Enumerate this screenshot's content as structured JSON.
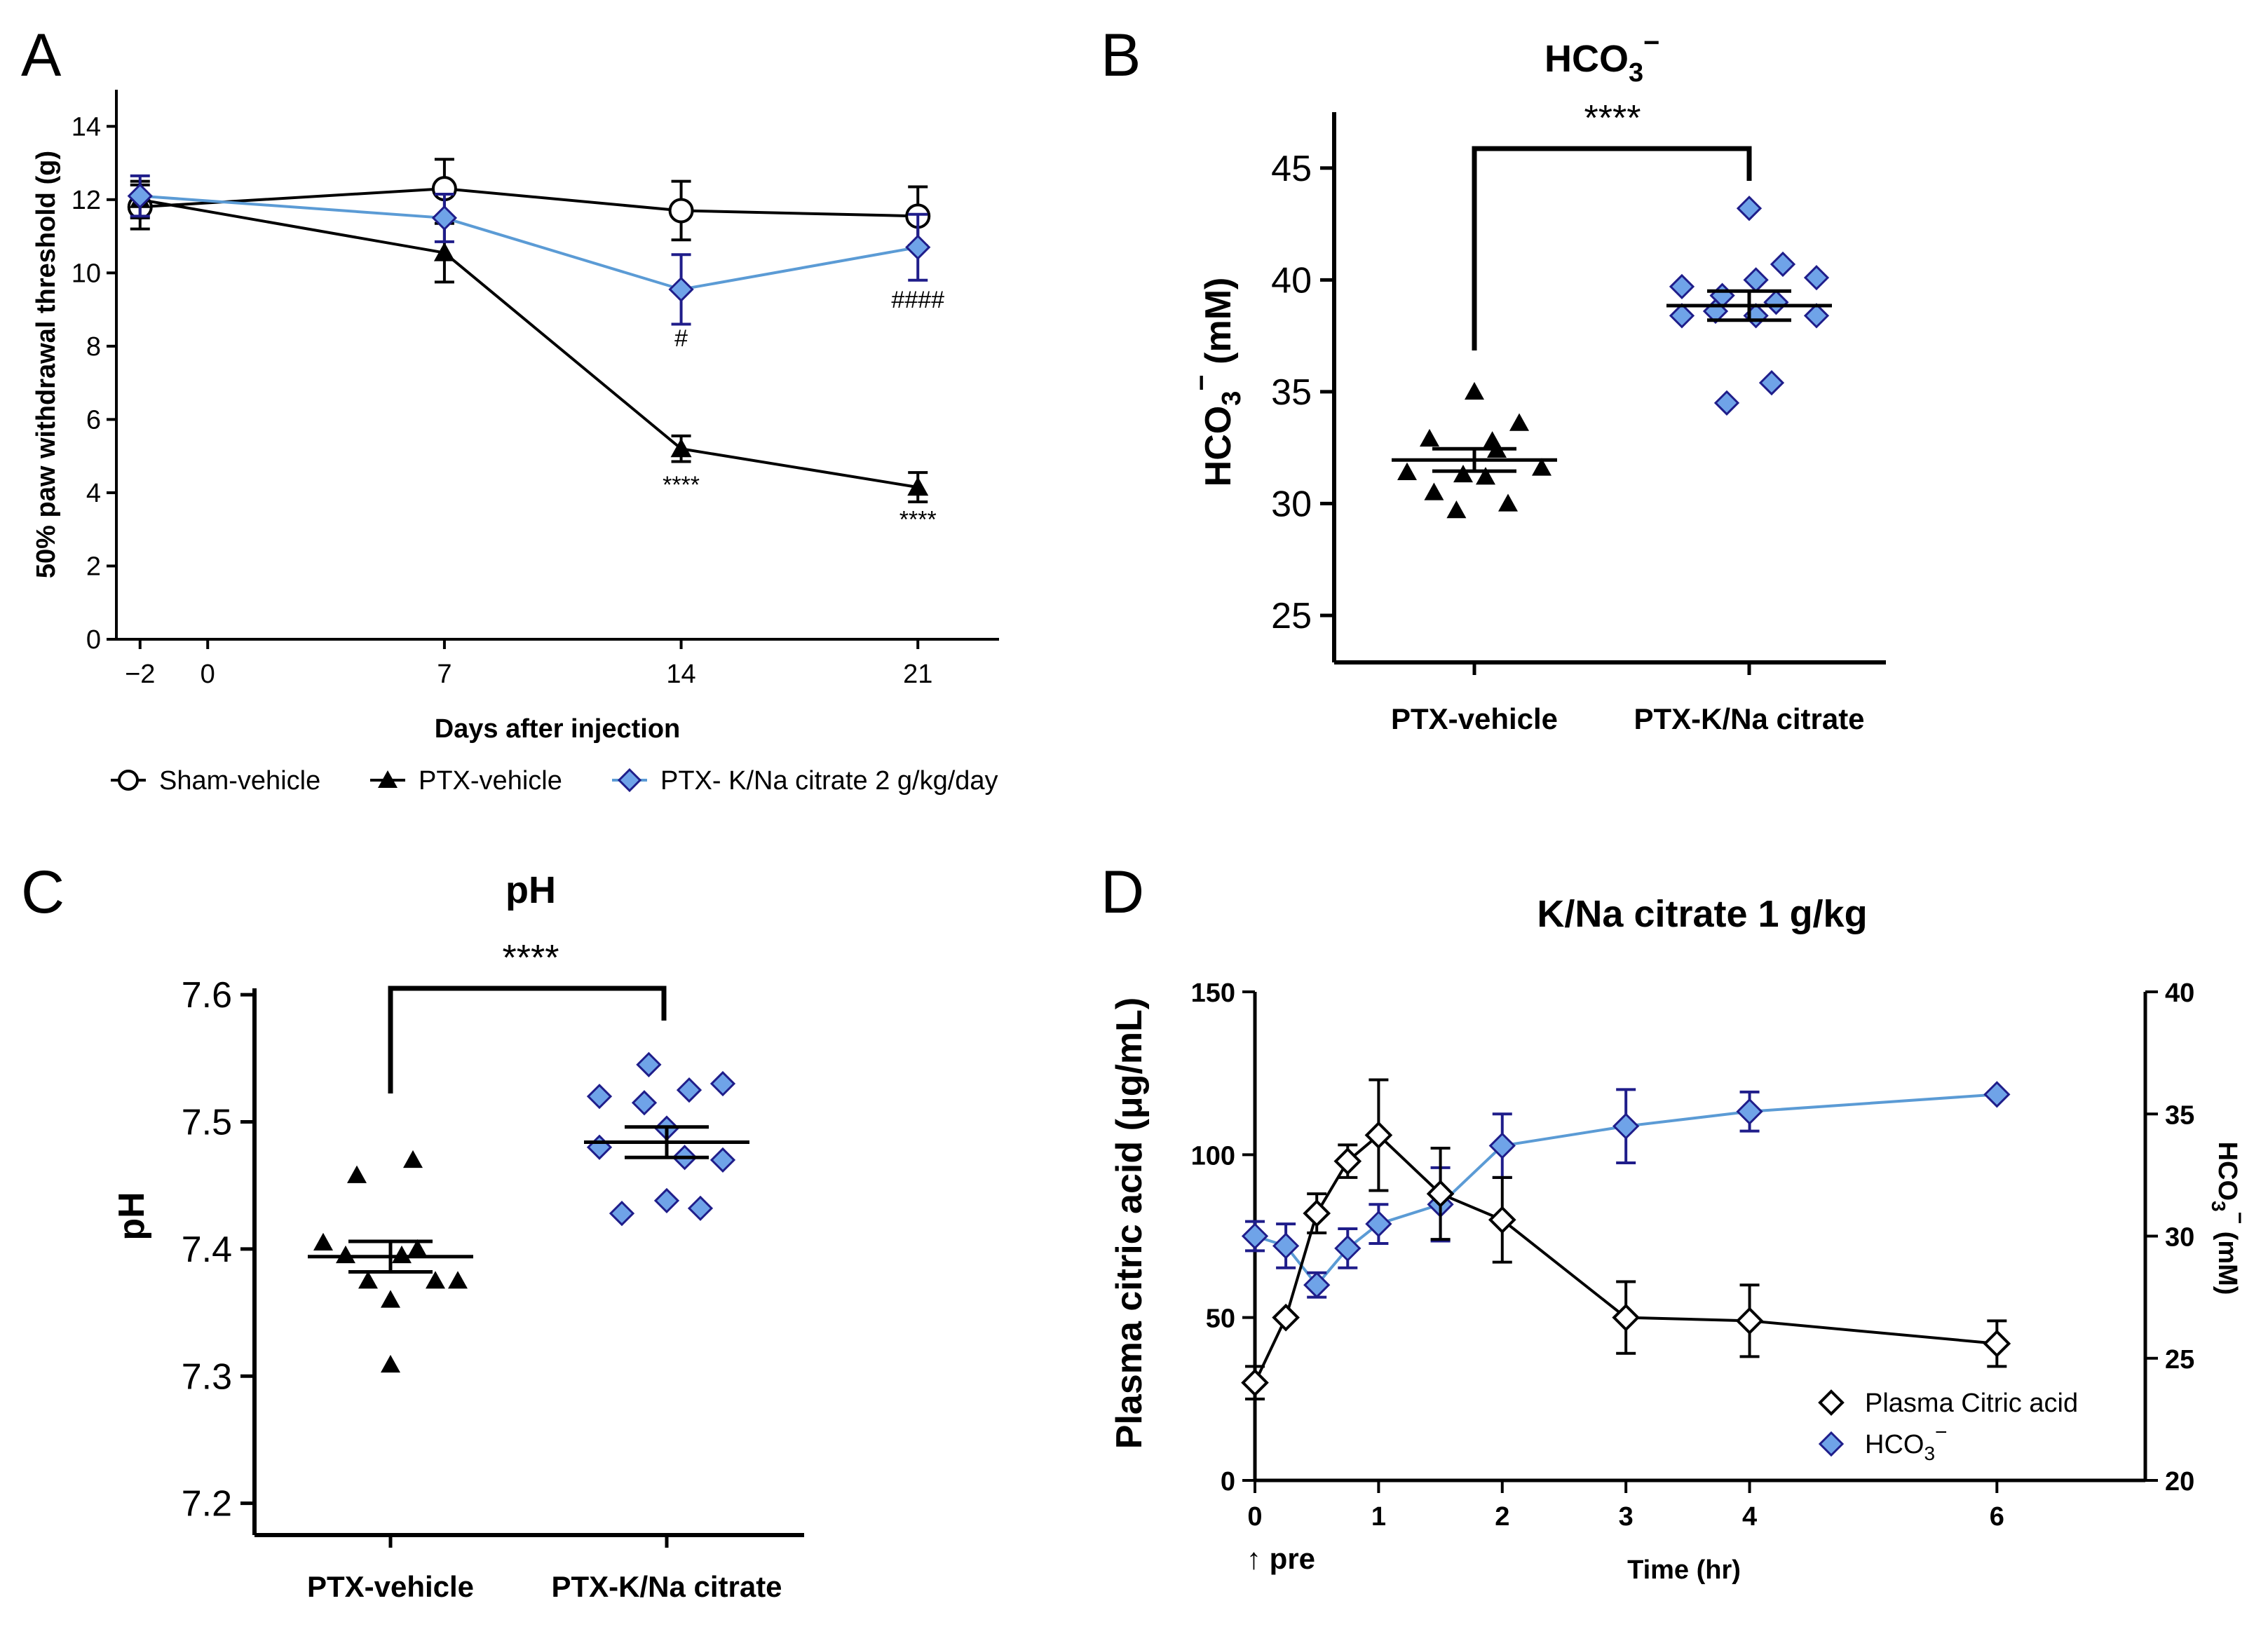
{
  "colors": {
    "black": "#000000",
    "blue_line": "#5b9bd5",
    "blue_dark": "#1f1d8a",
    "blue_fill": "#6fa3e8"
  },
  "chart_data": [
    {
      "panel": "A",
      "type": "line",
      "title": "",
      "xlabel": "Days after injection",
      "ylabel": "50% paw withdrawal threshold (g)",
      "xlim": [
        -2.7,
        23.4
      ],
      "ylim": [
        0,
        15
      ],
      "xticks": [
        {
          "v": -2,
          "label": "−2"
        },
        {
          "v": 0,
          "label": "0"
        },
        {
          "v": 7,
          "label": "7"
        },
        {
          "v": 14,
          "label": "14"
        },
        {
          "v": 21,
          "label": "21"
        }
      ],
      "yticks": [
        {
          "v": 0,
          "label": "0"
        },
        {
          "v": 2,
          "label": "2"
        },
        {
          "v": 4,
          "label": "4"
        },
        {
          "v": 6,
          "label": "6"
        },
        {
          "v": 8,
          "label": "8"
        },
        {
          "v": 10,
          "label": "10"
        },
        {
          "v": 12,
          "label": "12"
        },
        {
          "v": 14,
          "label": "14"
        }
      ],
      "series": [
        {
          "name": "Sham-vehicle",
          "marker": "circle",
          "x": [
            -2,
            7,
            14,
            21
          ],
          "y": [
            11.8,
            12.3,
            11.7,
            11.55
          ],
          "err": [
            0.6,
            0.8,
            0.8,
            0.8
          ]
        },
        {
          "name": "PTX-vehicle",
          "marker": "triangle",
          "x": [
            -2,
            7,
            14,
            21
          ],
          "y": [
            12.0,
            10.55,
            5.2,
            4.15
          ],
          "err": [
            0.5,
            0.8,
            0.35,
            0.4
          ]
        },
        {
          "name": "PTX- K/Na citrate 2 g/kg/day",
          "marker": "diamond",
          "x": [
            -2,
            7,
            14,
            21
          ],
          "y": [
            12.1,
            11.5,
            9.55,
            10.7
          ],
          "err": [
            0.55,
            0.65,
            0.95,
            0.9
          ]
        }
      ],
      "annotations": [
        {
          "text": "****",
          "x": 14,
          "y": 4.0
        },
        {
          "text": "****",
          "x": 21,
          "y": 3.05
        },
        {
          "text": "#",
          "x": 14,
          "y": 8.0
        },
        {
          "text": "####",
          "x": 21,
          "y": 9.05
        }
      ]
    },
    {
      "panel": "B",
      "type": "scatter",
      "title": "HCO3−",
      "ylabel": "HCO3− (mM)",
      "ylim": [
        22.9,
        47.5
      ],
      "yticks": [
        {
          "v": 25,
          "label": "25"
        },
        {
          "v": 30,
          "label": "30"
        },
        {
          "v": 35,
          "label": "35"
        },
        {
          "v": 40,
          "label": "40"
        },
        {
          "v": 45,
          "label": "45"
        }
      ],
      "categories": [
        "PTX-vehicle",
        "PTX-K/Na citrate"
      ],
      "groups": [
        {
          "name": "PTX-vehicle",
          "marker": "triangle",
          "mean": 31.95,
          "sem": 0.5,
          "points": [
            {
              "dx": -0.3,
              "y": 31.4
            },
            {
              "dx": -0.2,
              "y": 32.9
            },
            {
              "dx": -0.08,
              "y": 29.7
            },
            {
              "dx": 0.0,
              "y": 35.0
            },
            {
              "dx": 0.1,
              "y": 32.4
            },
            {
              "dx": 0.2,
              "y": 33.6
            },
            {
              "dx": -0.05,
              "y": 31.3
            },
            {
              "dx": 0.05,
              "y": 31.2
            },
            {
              "dx": 0.15,
              "y": 30.0
            },
            {
              "dx": 0.3,
              "y": 31.6
            },
            {
              "dx": -0.18,
              "y": 30.5
            },
            {
              "dx": 0.08,
              "y": 32.8
            }
          ]
        },
        {
          "name": "PTX-K/Na citrate",
          "marker": "diamond",
          "mean": 38.85,
          "sem": 0.65,
          "points": [
            {
              "dx": -0.3,
              "y": 38.4
            },
            {
              "dx": -0.3,
              "y": 39.7
            },
            {
              "dx": -0.12,
              "y": 39.3
            },
            {
              "dx": 0.0,
              "y": 43.2
            },
            {
              "dx": -0.1,
              "y": 34.5
            },
            {
              "dx": 0.03,
              "y": 38.4
            },
            {
              "dx": 0.03,
              "y": 40.0
            },
            {
              "dx": 0.1,
              "y": 35.4
            },
            {
              "dx": 0.12,
              "y": 39.0
            },
            {
              "dx": 0.15,
              "y": 40.7
            },
            {
              "dx": 0.3,
              "y": 38.4
            },
            {
              "dx": 0.3,
              "y": 40.1
            },
            {
              "dx": -0.15,
              "y": 38.6
            }
          ]
        }
      ],
      "significance": "****"
    },
    {
      "panel": "C",
      "type": "scatter",
      "title": "pH",
      "ylabel": "pH",
      "ylim": [
        7.175,
        7.605
      ],
      "yticks": [
        {
          "v": 7.2,
          "label": "7.2"
        },
        {
          "v": 7.3,
          "label": "7.3"
        },
        {
          "v": 7.4,
          "label": "7.4"
        },
        {
          "v": 7.5,
          "label": "7.5"
        },
        {
          "v": 7.6,
          "label": "7.6"
        }
      ],
      "categories": [
        "PTX-vehicle",
        "PTX-K/Na citrate"
      ],
      "groups": [
        {
          "name": "PTX-vehicle",
          "marker": "triangle",
          "mean": 7.394,
          "sem": 0.012,
          "points": [
            {
              "dx": -0.3,
              "y": 7.405
            },
            {
              "dx": -0.2,
              "y": 7.395
            },
            {
              "dx": -0.15,
              "y": 7.458
            },
            {
              "dx": -0.1,
              "y": 7.375
            },
            {
              "dx": 0.0,
              "y": 7.309
            },
            {
              "dx": 0.0,
              "y": 7.36
            },
            {
              "dx": 0.05,
              "y": 7.395
            },
            {
              "dx": 0.1,
              "y": 7.47
            },
            {
              "dx": 0.2,
              "y": 7.375
            },
            {
              "dx": 0.3,
              "y": 7.375
            },
            {
              "dx": 0.12,
              "y": 7.4
            }
          ]
        },
        {
          "name": "PTX-K/Na citrate",
          "marker": "diamond",
          "mean": 7.484,
          "sem": 0.012,
          "points": [
            {
              "dx": -0.3,
              "y": 7.52
            },
            {
              "dx": -0.3,
              "y": 7.48
            },
            {
              "dx": -0.2,
              "y": 7.428
            },
            {
              "dx": -0.1,
              "y": 7.515
            },
            {
              "dx": -0.08,
              "y": 7.545
            },
            {
              "dx": 0.0,
              "y": 7.438
            },
            {
              "dx": 0.0,
              "y": 7.495
            },
            {
              "dx": 0.08,
              "y": 7.472
            },
            {
              "dx": 0.1,
              "y": 7.525
            },
            {
              "dx": 0.15,
              "y": 7.432
            },
            {
              "dx": 0.25,
              "y": 7.47
            },
            {
              "dx": 0.25,
              "y": 7.53
            }
          ]
        }
      ],
      "significance": "****"
    },
    {
      "panel": "D",
      "type": "line",
      "title": "K/Na citrate 1 g/kg",
      "xlabel": "Time (hr)",
      "ylabel": "Plasma citric acid (μg/mL)",
      "y2label": "HCO3− (mM)",
      "xlim": [
        0,
        7.2
      ],
      "ylim": [
        0,
        150
      ],
      "y2lim": [
        20,
        40
      ],
      "xticks": [
        {
          "v": 0,
          "label": "0"
        },
        {
          "v": 1,
          "label": "1"
        },
        {
          "v": 2,
          "label": "2"
        },
        {
          "v": 3,
          "label": "3"
        },
        {
          "v": 4,
          "label": "4"
        },
        {
          "v": 6,
          "label": "6"
        }
      ],
      "yticks": [
        {
          "v": 0,
          "label": "0"
        },
        {
          "v": 50,
          "label": "50"
        },
        {
          "v": 100,
          "label": "100"
        },
        {
          "v": 150,
          "label": "150"
        }
      ],
      "y2ticks": [
        {
          "v": 20,
          "label": "20"
        },
        {
          "v": 25,
          "label": "25"
        },
        {
          "v": 30,
          "label": "30"
        },
        {
          "v": 35,
          "label": "35"
        },
        {
          "v": 40,
          "label": "40"
        }
      ],
      "series": [
        {
          "name": "Plasma Citric acid",
          "axis": "left",
          "marker": "diamond-open",
          "x": [
            0,
            0.25,
            0.5,
            0.75,
            1,
            1.5,
            2,
            3,
            4,
            6
          ],
          "y": [
            30,
            50,
            82,
            98,
            106,
            88,
            80,
            50,
            49,
            42
          ],
          "err": [
            5,
            0,
            6,
            5,
            17,
            14,
            13,
            11,
            11,
            7
          ]
        },
        {
          "name": "HCO3−",
          "axis": "right",
          "marker": "diamond",
          "x": [
            0,
            0.25,
            0.5,
            0.75,
            1,
            1.5,
            2,
            3,
            4,
            6
          ],
          "y": [
            30.0,
            29.6,
            28.0,
            29.5,
            30.5,
            31.3,
            33.7,
            34.5,
            35.1,
            35.8
          ],
          "err": [
            0.6,
            0.9,
            0.5,
            0.8,
            0.8,
            1.5,
            1.3,
            1.5,
            0.8,
            0
          ]
        }
      ],
      "annotation": "↑ pre"
    }
  ],
  "labels": {
    "panel_a": "A",
    "panel_b": "B",
    "panel_c": "C",
    "panel_d": "D",
    "title_b_main": "HCO",
    "title_b_sub": "3",
    "title_b_sup": "−",
    "title_c": "pH",
    "title_d": "K/Na citrate 1 g/kg",
    "ylabel_a": "50% paw withdrawal threshold (g)",
    "xlabel_a": "Days after injection",
    "ylabel_b_main": "HCO",
    "ylabel_b_sub": "3",
    "ylabel_b_sup": "−",
    "ylabel_b_unit": " (mM)",
    "ylabel_c": "pH",
    "ylabel_d": "Plasma citric acid (μg/mL)",
    "y2label_d_main": "HCO",
    "y2label_d_sub": "3",
    "y2label_d_sup": "−",
    "y2label_d_unit": " (mM)",
    "xlabel_d": "Time (hr)",
    "pre": "↑ pre",
    "cat_b1": "PTX-vehicle",
    "cat_b2": "PTX-K/Na citrate",
    "cat_c1": "PTX-vehicle",
    "cat_c2": "PTX-K/Na citrate",
    "sig_b": "****",
    "sig_c": "****",
    "legend_a": [
      "Sham-vehicle",
      "PTX-vehicle",
      "PTX- K/Na citrate 2 g/kg/day"
    ],
    "legend_d1": "Plasma Citric acid",
    "legend_d2_main": "HCO",
    "legend_d2_sub": "3",
    "legend_d2_sup": "−"
  }
}
